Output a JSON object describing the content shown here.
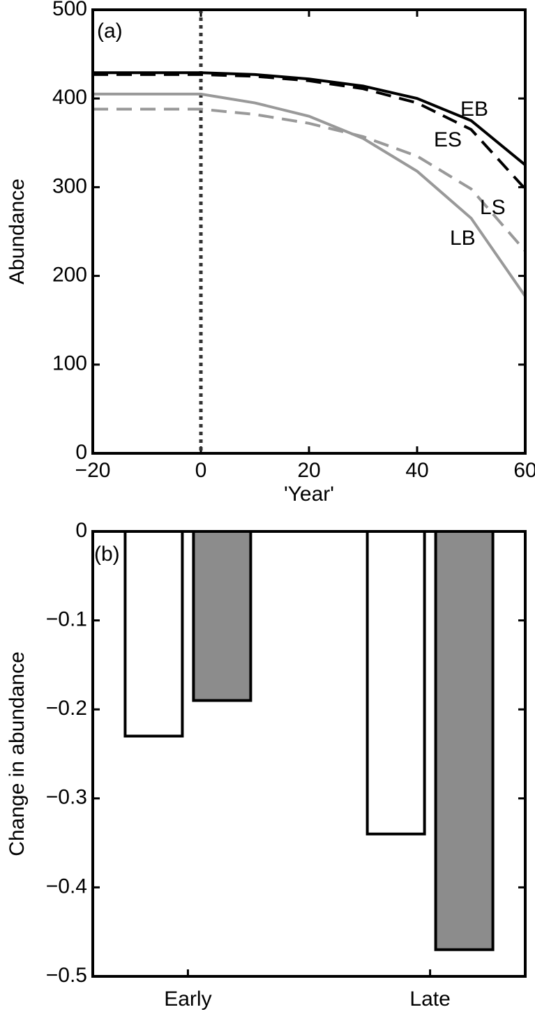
{
  "chart_data": [
    {
      "type": "line",
      "x": [
        -20,
        -10,
        0,
        10,
        20,
        30,
        40,
        50,
        60
      ],
      "series": [
        {
          "name": "EB",
          "color": "#000000",
          "dash": false,
          "values": [
            429,
            429,
            429,
            427,
            422,
            414,
            400,
            375,
            325
          ]
        },
        {
          "name": "ES",
          "color": "#000000",
          "dash": true,
          "values": [
            427,
            427,
            427,
            425,
            420,
            411,
            395,
            365,
            298
          ]
        },
        {
          "name": "LS",
          "color": "#999999",
          "dash": true,
          "values": [
            388,
            388,
            388,
            382,
            372,
            357,
            335,
            298,
            228
          ]
        },
        {
          "name": "LB",
          "color": "#999999",
          "dash": false,
          "values": [
            405,
            405,
            405,
            395,
            380,
            355,
            318,
            265,
            177
          ]
        }
      ],
      "annotations": [
        "(a)",
        "EB",
        "ES",
        "LS",
        "LB"
      ],
      "vline": 0,
      "x_label": "'Year'",
      "y_label": "Abundance",
      "xlim": [
        -20,
        60
      ],
      "xticks": [
        {
          "value": -20,
          "label": "−20"
        },
        0,
        20,
        40,
        60
      ],
      "ylim": [
        0,
        500
      ],
      "yticks": [
        0,
        100,
        200,
        300,
        400,
        500
      ]
    },
    {
      "type": "bar",
      "categories": [
        "Early",
        "Late"
      ],
      "series": [
        {
          "color": "#ffffff",
          "values": [
            -0.23,
            -0.34
          ]
        },
        {
          "color": "#8c8c8c",
          "values": [
            -0.19,
            -0.47
          ]
        }
      ],
      "annotations": [
        "(b)"
      ],
      "y_label": "Change in abundance",
      "ylim": [
        -0.5,
        0
      ],
      "yticks": [
        {
          "value": -0.5,
          "label": "−0.5"
        },
        {
          "value": -0.4,
          "label": "−0.4"
        },
        {
          "value": -0.3,
          "label": "−0.3"
        },
        {
          "value": -0.2,
          "label": "−0.2"
        },
        {
          "value": -0.1,
          "label": "−0.1"
        },
        0
      ]
    }
  ]
}
